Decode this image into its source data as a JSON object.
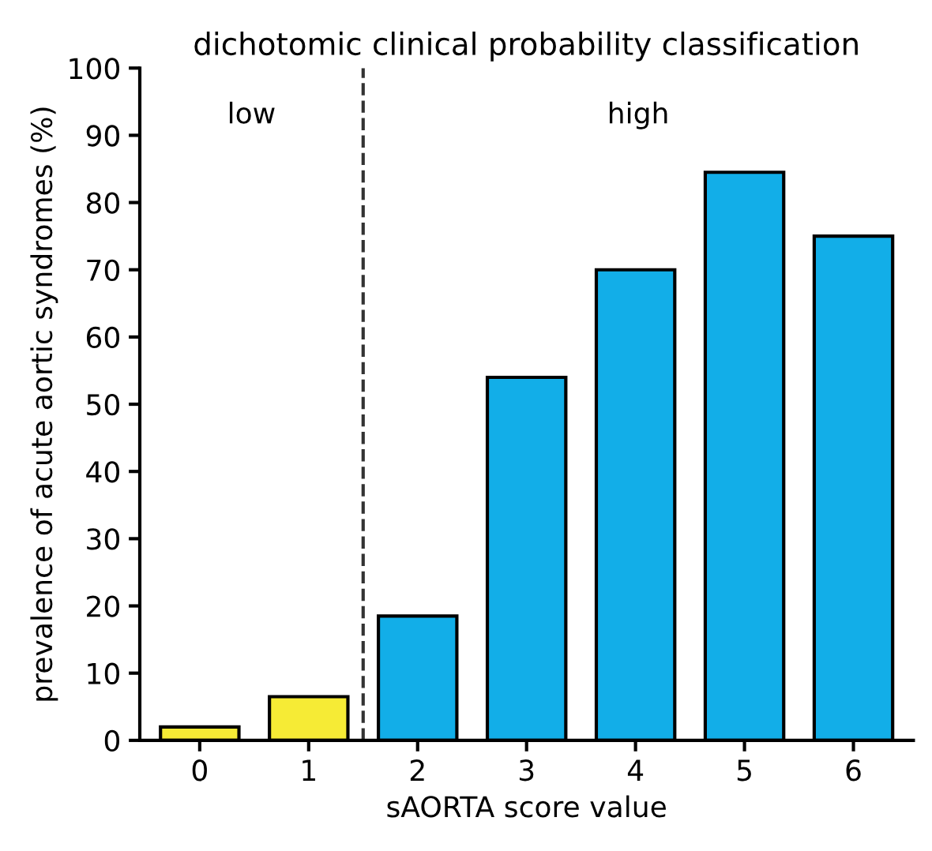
{
  "chart_data": {
    "type": "bar",
    "title": "dichotomic clinical probability classification",
    "xlabel": "sAORTA score value",
    "ylabel": "prevalence of acute aortic syndromes (%)",
    "categories": [
      "0",
      "1",
      "2",
      "3",
      "4",
      "5",
      "6"
    ],
    "values": [
      2,
      6.5,
      18.5,
      54,
      70,
      84.5,
      75
    ],
    "colors": [
      "#f6eb35",
      "#f6eb35",
      "#12aee8",
      "#12aee8",
      "#12aee8",
      "#12aee8",
      "#12aee8"
    ],
    "ylim": [
      0,
      100
    ],
    "yticks": [
      0,
      10,
      20,
      30,
      40,
      50,
      60,
      70,
      80,
      90,
      100
    ],
    "grid": false,
    "annotations": [
      "low",
      "high"
    ]
  }
}
